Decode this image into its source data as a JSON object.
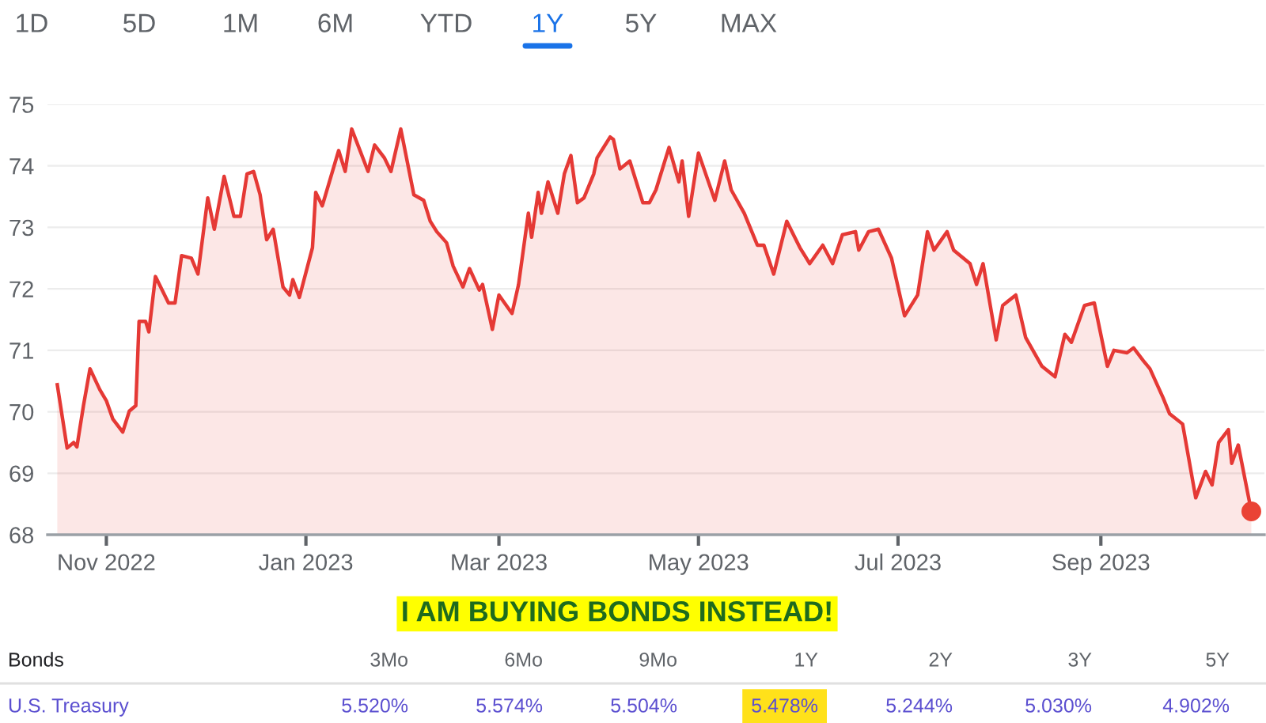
{
  "chart_data": {
    "type": "area",
    "x": [
      "2022-10-17",
      "2022-10-20",
      "2022-10-22",
      "2022-10-23",
      "2022-10-25",
      "2022-10-27",
      "2022-10-30",
      "2022-11-01",
      "2022-11-03",
      "2022-11-06",
      "2022-11-08",
      "2022-11-10",
      "2022-11-11",
      "2022-11-13",
      "2022-11-14",
      "2022-11-16",
      "2022-11-20",
      "2022-11-22",
      "2022-11-24",
      "2022-11-27",
      "2022-11-29",
      "2022-12-02",
      "2022-12-04",
      "2022-12-07",
      "2022-12-10",
      "2022-12-12",
      "2022-12-14",
      "2022-12-16",
      "2022-12-18",
      "2022-12-20",
      "2022-12-22",
      "2022-12-25",
      "2022-12-27",
      "2022-12-28",
      "2022-12-30",
      "2023-01-03",
      "2023-01-04",
      "2023-01-06",
      "2023-01-11",
      "2023-01-13",
      "2023-01-15",
      "2023-01-20",
      "2023-01-22",
      "2023-01-25",
      "2023-01-27",
      "2023-01-30",
      "2023-02-03",
      "2023-02-06",
      "2023-02-08",
      "2023-02-10",
      "2023-02-13",
      "2023-02-15",
      "2023-02-18",
      "2023-02-20",
      "2023-02-23",
      "2023-02-24",
      "2023-02-27",
      "2023-03-01",
      "2023-03-05",
      "2023-03-07",
      "2023-03-10",
      "2023-03-11",
      "2023-03-13",
      "2023-03-14",
      "2023-03-16",
      "2023-03-19",
      "2023-03-21",
      "2023-03-23",
      "2023-03-25",
      "2023-03-27",
      "2023-03-30",
      "2023-03-31",
      "2023-04-04",
      "2023-04-05",
      "2023-04-07",
      "2023-04-10",
      "2023-04-14",
      "2023-04-16",
      "2023-04-18",
      "2023-04-22",
      "2023-04-25",
      "2023-04-26",
      "2023-04-28",
      "2023-05-01",
      "2023-05-06",
      "2023-05-09",
      "2023-05-11",
      "2023-05-15",
      "2023-05-19",
      "2023-05-21",
      "2023-05-24",
      "2023-05-28",
      "2023-06-01",
      "2023-06-04",
      "2023-06-08",
      "2023-06-11",
      "2023-06-14",
      "2023-06-18",
      "2023-06-19",
      "2023-06-22",
      "2023-06-25",
      "2023-06-29",
      "2023-07-03",
      "2023-07-07",
      "2023-07-10",
      "2023-07-12",
      "2023-07-16",
      "2023-07-18",
      "2023-07-23",
      "2023-07-25",
      "2023-07-27",
      "2023-07-31",
      "2023-08-02",
      "2023-08-06",
      "2023-08-09",
      "2023-08-14",
      "2023-08-18",
      "2023-08-21",
      "2023-08-23",
      "2023-08-27",
      "2023-08-30",
      "2023-09-03",
      "2023-09-05",
      "2023-09-09",
      "2023-09-11",
      "2023-09-14",
      "2023-09-16",
      "2023-09-20",
      "2023-09-22",
      "2023-09-26",
      "2023-09-30",
      "2023-10-03",
      "2023-10-05",
      "2023-10-07",
      "2023-10-10",
      "2023-10-11",
      "2023-10-13",
      "2023-10-17"
    ],
    "series": [
      {
        "color": "#e53935",
        "values": [
          70.44,
          69.41,
          69.5,
          69.43,
          70.1,
          70.7,
          70.36,
          70.18,
          69.88,
          69.67,
          70.01,
          70.1,
          71.47,
          71.47,
          71.3,
          72.2,
          71.77,
          71.77,
          72.54,
          72.5,
          72.24,
          73.48,
          72.97,
          73.83,
          73.18,
          73.18,
          73.87,
          73.91,
          73.53,
          72.8,
          72.97,
          72.03,
          71.9,
          72.15,
          71.86,
          72.67,
          73.57,
          73.35,
          74.25,
          73.91,
          74.6,
          73.91,
          74.34,
          74.13,
          73.91,
          74.6,
          73.53,
          73.44,
          73.1,
          72.93,
          72.75,
          72.37,
          72.03,
          72.33,
          71.98,
          72.07,
          71.34,
          71.9,
          71.6,
          72.07,
          73.23,
          72.84,
          73.57,
          73.23,
          73.74,
          73.23,
          73.87,
          74.17,
          73.4,
          73.48,
          73.87,
          74.13,
          74.47,
          74.43,
          73.95,
          74.08,
          73.4,
          73.4,
          73.61,
          74.3,
          73.74,
          74.08,
          73.18,
          74.21,
          73.44,
          74.08,
          73.61,
          73.23,
          72.71,
          72.71,
          72.24,
          73.1,
          72.67,
          72.41,
          72.71,
          72.41,
          72.88,
          72.93,
          72.63,
          72.93,
          72.97,
          72.5,
          71.56,
          71.9,
          72.93,
          72.63,
          72.93,
          72.63,
          72.41,
          72.07,
          72.41,
          71.17,
          71.73,
          71.9,
          71.21,
          70.74,
          70.57,
          71.26,
          71.13,
          71.73,
          71.77,
          70.74,
          71.0,
          70.96,
          71.04,
          70.83,
          70.7,
          70.23,
          69.97,
          69.8,
          68.6,
          69.03,
          68.81,
          69.5,
          69.71,
          69.16,
          69.46,
          68.38
        ]
      },
      {
        "type": "scatter",
        "color": "#ea4335",
        "x": [
          "2023-10-17"
        ],
        "values": [
          68.38
        ],
        "marker": "circle"
      }
    ],
    "xlim": [
      "2022-10-14",
      "2023-10-21"
    ],
    "xticks": [
      {
        "value": "2022-11-01",
        "label": "Nov 2022"
      },
      {
        "value": "2023-01-01",
        "label": "Jan 2023"
      },
      {
        "value": "2023-03-01",
        "label": "Mar 2023"
      },
      {
        "value": "2023-05-01",
        "label": "May 2023"
      },
      {
        "value": "2023-07-01",
        "label": "Jul 2023"
      },
      {
        "value": "2023-09-01",
        "label": "Sep 2023"
      }
    ],
    "ylim": [
      68,
      75
    ],
    "yticks": [
      68,
      69,
      70,
      71,
      72,
      73,
      74,
      75
    ],
    "grid": "y",
    "legend": false,
    "annotations": [
      "1D",
      "5D",
      "1M",
      "6M",
      "YTD",
      "1Y",
      "5Y",
      "MAX",
      "I AM BUYING BONDS INSTEAD!",
      "Bonds",
      "3Mo",
      "6Mo",
      "9Mo",
      "1Y",
      "2Y",
      "3Y",
      "5Y",
      "U.S. Treasury",
      "5.520%",
      "5.574%",
      "5.504%",
      "5.478%",
      "5.244%",
      "5.030%",
      "4.902%"
    ]
  }
}
